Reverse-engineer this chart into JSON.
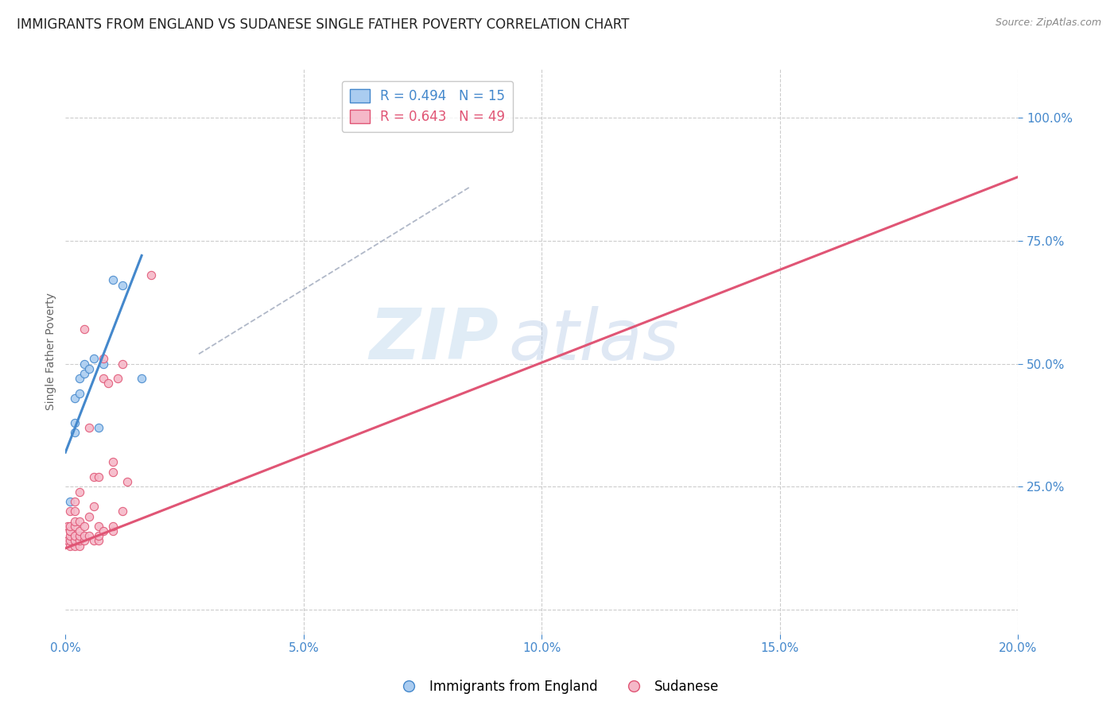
{
  "title": "IMMIGRANTS FROM ENGLAND VS SUDANESE SINGLE FATHER POVERTY CORRELATION CHART",
  "source": "Source: ZipAtlas.com",
  "ylabel": "Single Father Poverty",
  "legend_blue_label": "Immigrants from England",
  "legend_pink_label": "Sudanese",
  "legend_blue_r": "R = 0.494",
  "legend_blue_n": "N = 15",
  "legend_pink_r": "R = 0.643",
  "legend_pink_n": "N = 49",
  "blue_color": "#aaccf0",
  "pink_color": "#f5b8c8",
  "blue_line_color": "#4488cc",
  "pink_line_color": "#e05575",
  "blue_scatter_x": [
    0.001,
    0.002,
    0.002,
    0.002,
    0.003,
    0.003,
    0.004,
    0.004,
    0.005,
    0.006,
    0.007,
    0.008,
    0.01,
    0.012,
    0.016
  ],
  "blue_scatter_y": [
    0.22,
    0.36,
    0.38,
    0.43,
    0.44,
    0.47,
    0.48,
    0.5,
    0.49,
    0.51,
    0.37,
    0.5,
    0.67,
    0.66,
    0.47
  ],
  "pink_scatter_x": [
    0.0005,
    0.0005,
    0.001,
    0.001,
    0.001,
    0.001,
    0.001,
    0.001,
    0.001,
    0.002,
    0.002,
    0.002,
    0.002,
    0.002,
    0.002,
    0.002,
    0.003,
    0.003,
    0.003,
    0.003,
    0.003,
    0.003,
    0.004,
    0.004,
    0.004,
    0.004,
    0.005,
    0.005,
    0.005,
    0.006,
    0.006,
    0.006,
    0.007,
    0.007,
    0.007,
    0.007,
    0.008,
    0.008,
    0.008,
    0.009,
    0.01,
    0.01,
    0.01,
    0.01,
    0.011,
    0.012,
    0.012,
    0.013,
    0.018
  ],
  "pink_scatter_y": [
    0.14,
    0.17,
    0.13,
    0.14,
    0.15,
    0.16,
    0.16,
    0.17,
    0.2,
    0.13,
    0.14,
    0.15,
    0.17,
    0.18,
    0.2,
    0.22,
    0.13,
    0.14,
    0.15,
    0.16,
    0.18,
    0.24,
    0.14,
    0.15,
    0.17,
    0.57,
    0.15,
    0.19,
    0.37,
    0.14,
    0.21,
    0.27,
    0.14,
    0.15,
    0.17,
    0.27,
    0.16,
    0.47,
    0.51,
    0.46,
    0.16,
    0.17,
    0.28,
    0.3,
    0.47,
    0.5,
    0.2,
    0.26,
    0.68
  ],
  "xlim": [
    0.0,
    0.2
  ],
  "ylim": [
    -0.05,
    1.1
  ],
  "blue_line_x": [
    0.0,
    0.016
  ],
  "blue_line_y": [
    0.32,
    0.72
  ],
  "pink_line_x": [
    0.0,
    0.2
  ],
  "pink_line_y": [
    0.125,
    0.88
  ],
  "dashed_line_x": [
    0.028,
    0.085
  ],
  "dashed_line_y": [
    0.52,
    0.86
  ],
  "background_color": "#ffffff",
  "watermark_zip": "ZIP",
  "watermark_atlas": "atlas",
  "title_fontsize": 12,
  "scatter_size": 55
}
